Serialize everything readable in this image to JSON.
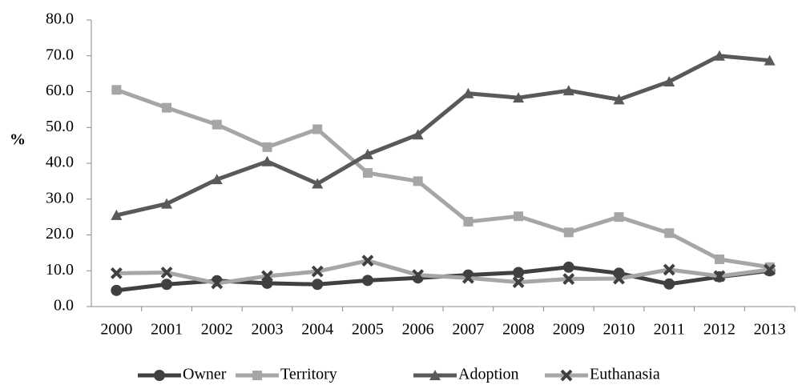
{
  "chart_data": {
    "type": "line",
    "ylabel": "%",
    "categories": [
      "2000",
      "2001",
      "2002",
      "2003",
      "2004",
      "2005",
      "2006",
      "2007",
      "2008",
      "2009",
      "2010",
      "2011",
      "2012",
      "2013"
    ],
    "series": [
      {
        "name": "Owner",
        "color": "#404040",
        "marker": "circle",
        "values": [
          4.5,
          6.2,
          7.2,
          6.5,
          6.2,
          7.3,
          8.0,
          8.8,
          9.5,
          11.0,
          9.3,
          6.3,
          8.3,
          10.0
        ]
      },
      {
        "name": "Territory",
        "color": "#a6a6a6",
        "marker": "square",
        "values": [
          60.5,
          55.5,
          50.8,
          44.5,
          49.5,
          37.3,
          35.0,
          23.7,
          25.2,
          20.7,
          25.0,
          20.5,
          13.2,
          11.0
        ]
      },
      {
        "name": "Adoption",
        "color": "#595959",
        "marker": "triangle",
        "values": [
          25.5,
          28.7,
          35.5,
          40.5,
          34.3,
          42.5,
          48.0,
          59.5,
          58.3,
          60.3,
          57.8,
          62.8,
          70.0,
          68.7
        ]
      },
      {
        "name": "Euthanasia",
        "color": "#a6a6a6",
        "marker": "x",
        "marker_color": "#404040",
        "values": [
          9.3,
          9.5,
          6.5,
          8.5,
          9.8,
          12.8,
          8.8,
          8.0,
          6.8,
          7.7,
          7.8,
          10.3,
          8.5,
          10.3
        ]
      }
    ],
    "ylim": [
      0,
      80
    ],
    "yticks": [
      {
        "value": 0,
        "label": "0.0"
      },
      {
        "value": 10,
        "label": "10.0"
      },
      {
        "value": 20,
        "label": "20.0"
      },
      {
        "value": 30,
        "label": "30.0"
      },
      {
        "value": 40,
        "label": "40.0"
      },
      {
        "value": 50,
        "label": "50.0"
      },
      {
        "value": 60,
        "label": "60.0"
      },
      {
        "value": 70,
        "label": "70.0"
      },
      {
        "value": 80,
        "label": "80.0"
      }
    ],
    "grid": false,
    "legend": "bottom"
  }
}
